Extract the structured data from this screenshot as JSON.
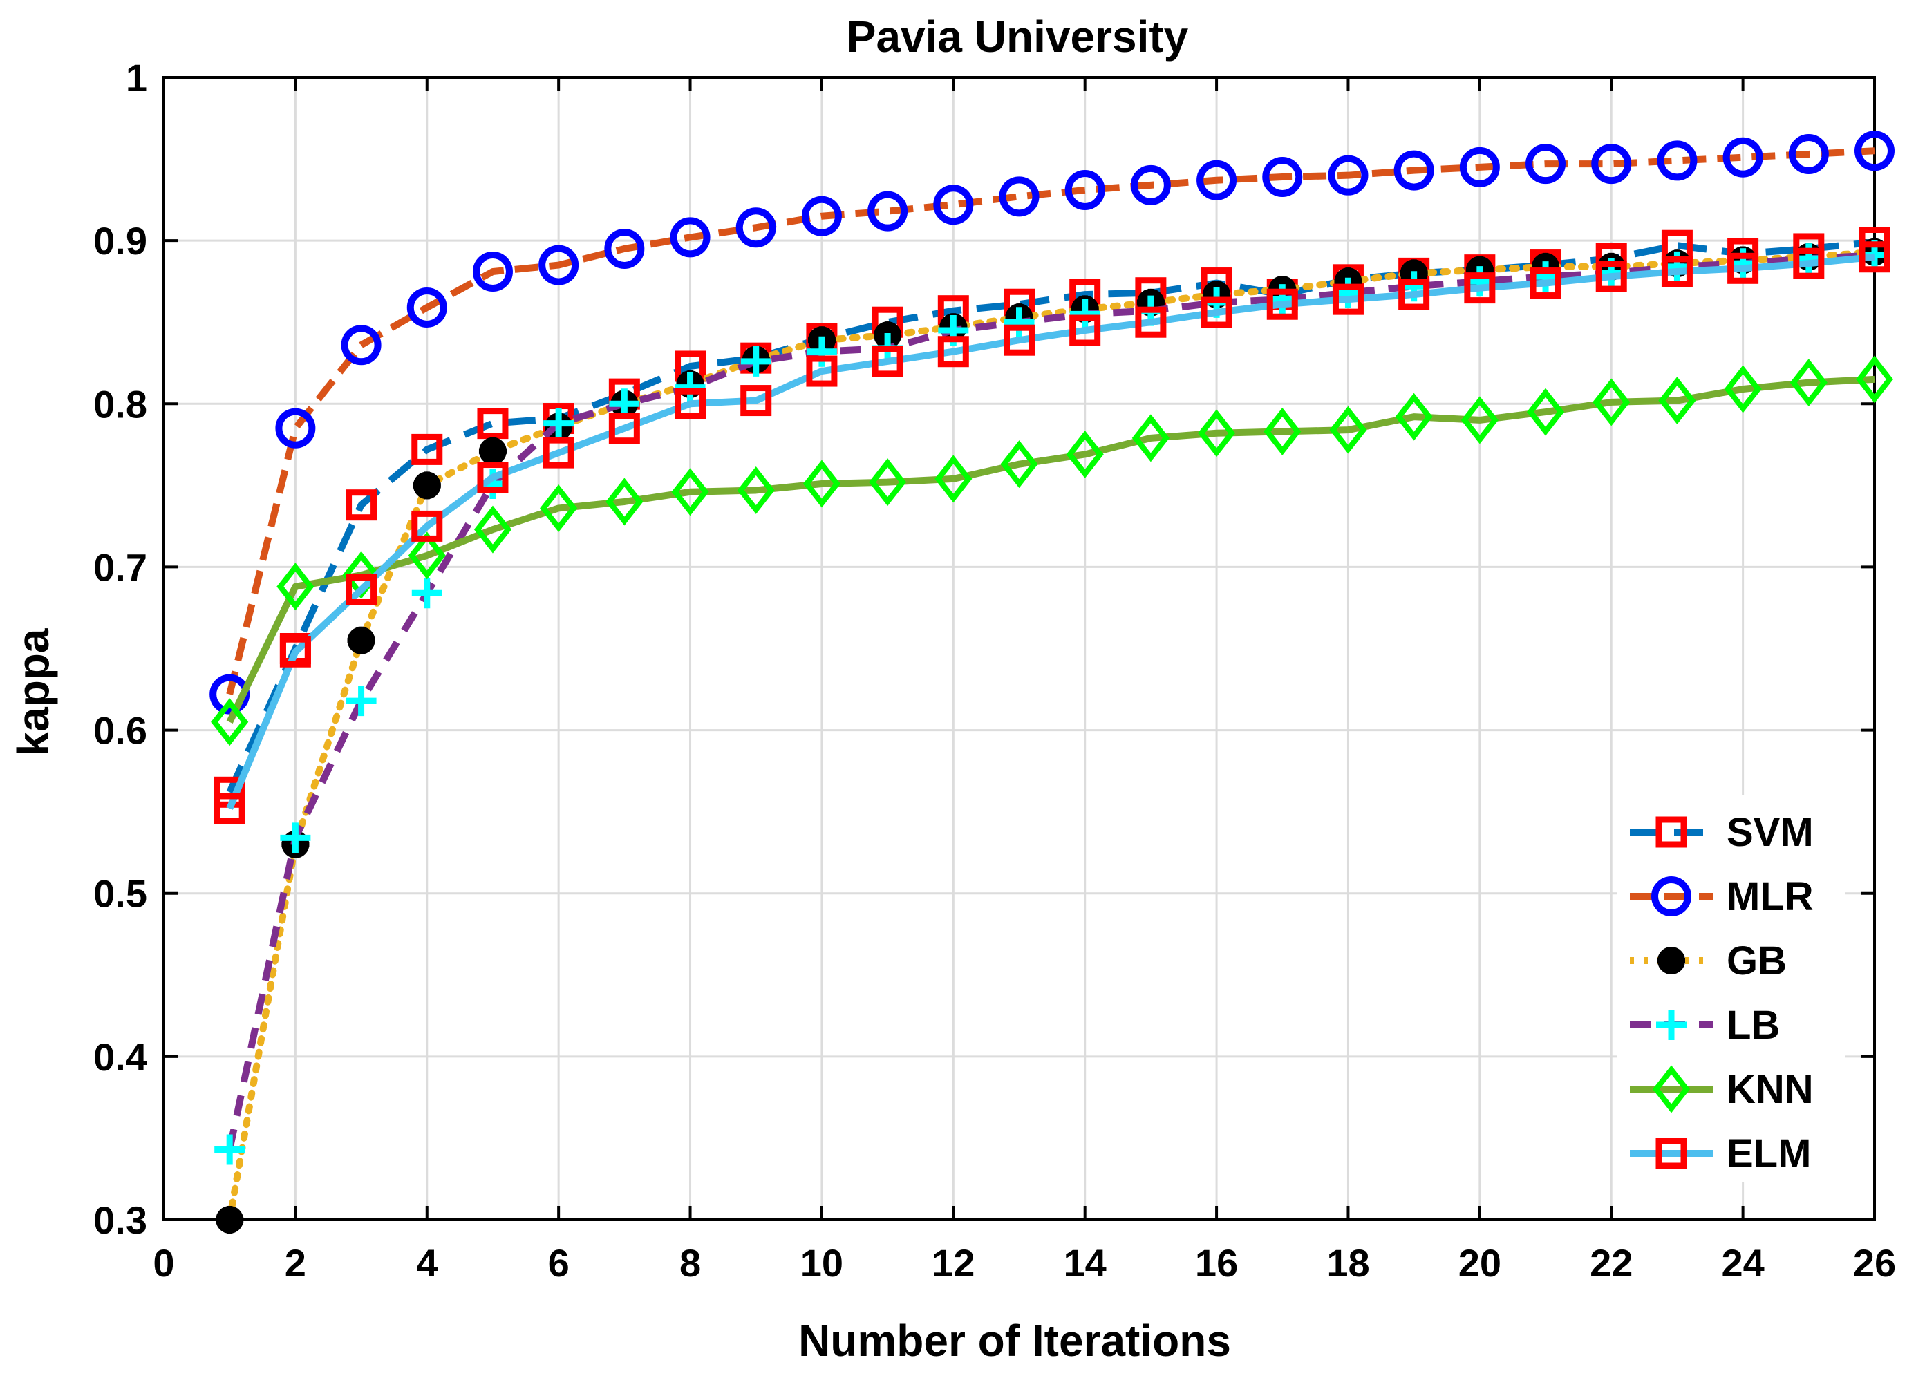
{
  "chart_data": {
    "type": "line",
    "title": "Pavia University",
    "xlabel": "Number of Iterations",
    "ylabel": "kappa",
    "xlim": [
      0,
      26
    ],
    "ylim": [
      0.3,
      1
    ],
    "xticks": [
      0,
      2,
      4,
      6,
      8,
      10,
      12,
      14,
      16,
      18,
      20,
      22,
      24,
      26
    ],
    "yticks": [
      0.3,
      0.4,
      0.5,
      0.6,
      0.7,
      0.8,
      0.9,
      1
    ],
    "xtick_labels": [
      "0",
      "2",
      "4",
      "6",
      "8",
      "10",
      "12",
      "14",
      "16",
      "18",
      "20",
      "22",
      "24",
      "26"
    ],
    "ytick_labels": [
      "0.3",
      "0.4",
      "0.5",
      "0.6",
      "0.7",
      "0.8",
      "0.9",
      "1"
    ],
    "grid": true,
    "legend_position": "bottom-right",
    "x": [
      1,
      2,
      3,
      4,
      5,
      6,
      7,
      8,
      9,
      10,
      11,
      12,
      13,
      14,
      15,
      16,
      17,
      18,
      19,
      20,
      21,
      22,
      23,
      24,
      25,
      26
    ],
    "series": [
      {
        "name": "SVM",
        "line_color": "#0072bd",
        "marker_color": "#ff0000",
        "dash": "long-dash",
        "marker": "square",
        "values": [
          0.562,
          0.65,
          0.738,
          0.772,
          0.788,
          0.791,
          0.806,
          0.823,
          0.828,
          0.84,
          0.85,
          0.857,
          0.861,
          0.867,
          0.868,
          0.874,
          0.867,
          0.876,
          0.88,
          0.882,
          0.885,
          0.889,
          0.897,
          0.892,
          0.895,
          0.899
        ]
      },
      {
        "name": "MLR",
        "line_color": "#d95319",
        "marker_color": "#0000ff",
        "dash": "dash-dot",
        "marker": "circle",
        "values": [
          0.622,
          0.785,
          0.836,
          0.859,
          0.881,
          0.885,
          0.895,
          0.902,
          0.908,
          0.915,
          0.918,
          0.922,
          0.927,
          0.931,
          0.934,
          0.937,
          0.939,
          0.94,
          0.943,
          0.945,
          0.947,
          0.947,
          0.949,
          0.951,
          0.953,
          0.955
        ]
      },
      {
        "name": "GB",
        "line_color": "#edb120",
        "marker_color": "#000000",
        "dash": "dotted",
        "marker": "filled-circle",
        "values": [
          0.3,
          0.53,
          0.655,
          0.75,
          0.771,
          0.786,
          0.8,
          0.812,
          0.827,
          0.839,
          0.842,
          0.847,
          0.853,
          0.858,
          0.862,
          0.867,
          0.87,
          0.875,
          0.88,
          0.882,
          0.884,
          0.884,
          0.886,
          0.888,
          0.89,
          0.893
        ]
      },
      {
        "name": "LB",
        "line_color": "#7e2f8e",
        "marker_color": "#00ffff",
        "dash": "dashed",
        "marker": "plus",
        "values": [
          0.343,
          0.534,
          0.618,
          0.684,
          0.751,
          0.788,
          0.8,
          0.81,
          0.826,
          0.832,
          0.834,
          0.845,
          0.85,
          0.855,
          0.857,
          0.862,
          0.864,
          0.868,
          0.872,
          0.875,
          0.878,
          0.88,
          0.884,
          0.886,
          0.889,
          0.891
        ]
      },
      {
        "name": "KNN",
        "line_color": "#77ac30",
        "marker_color": "#00ff00",
        "dash": "solid",
        "marker": "diamond",
        "values": [
          0.605,
          0.688,
          0.695,
          0.707,
          0.723,
          0.736,
          0.74,
          0.746,
          0.747,
          0.751,
          0.752,
          0.754,
          0.763,
          0.769,
          0.779,
          0.782,
          0.783,
          0.784,
          0.792,
          0.79,
          0.795,
          0.801,
          0.802,
          0.809,
          0.813,
          0.815
        ]
      },
      {
        "name": "ELM",
        "line_color": "#4dbeee",
        "marker_color": "#ff0000",
        "dash": "solid",
        "marker": "square",
        "values": [
          0.552,
          0.648,
          0.686,
          0.725,
          0.755,
          0.77,
          0.785,
          0.8,
          0.802,
          0.82,
          0.826,
          0.832,
          0.839,
          0.845,
          0.85,
          0.856,
          0.861,
          0.864,
          0.867,
          0.871,
          0.874,
          0.878,
          0.881,
          0.883,
          0.886,
          0.89
        ]
      }
    ]
  }
}
